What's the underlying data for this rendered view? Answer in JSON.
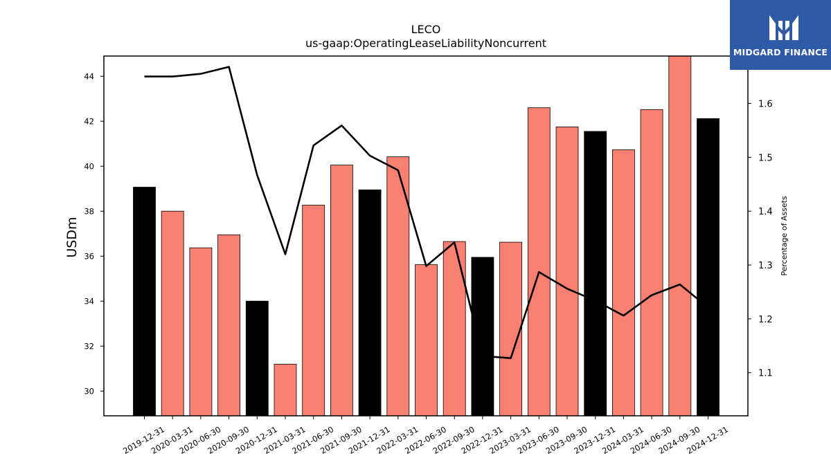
{
  "chart_data": {
    "type": "bar",
    "title": "LECO",
    "subtitle": "us-gaap:OperatingLeaseLiabilityNoncurrent",
    "ylabel": "USDm",
    "y2label": "Percentage of Assets",
    "categories": [
      "2019-12-31",
      "2020-03-31",
      "2020-06-30",
      "2020-09-30",
      "2020-12-31",
      "2021-03-31",
      "2021-06-30",
      "2021-09-30",
      "2021-12-31",
      "2022-03-31",
      "2022-06-30",
      "2022-09-30",
      "2022-12-31",
      "2023-03-31",
      "2023-06-30",
      "2023-09-30",
      "2023-12-31",
      "2024-03-31",
      "2024-06-30",
      "2024-09-30",
      "2024-12-31"
    ],
    "series": [
      {
        "kind": "bar",
        "axis": "left",
        "values": [
          39.07,
          38.0,
          36.37,
          36.95,
          34.0,
          31.2,
          38.27,
          40.05,
          38.95,
          40.42,
          35.62,
          36.65,
          35.95,
          36.62,
          42.6,
          41.75,
          41.55,
          40.73,
          42.52,
          44.95,
          42.12
        ],
        "colors": [
          "#000000",
          "#fa8072",
          "#fa8072",
          "#fa8072",
          "#000000",
          "#fa8072",
          "#fa8072",
          "#fa8072",
          "#000000",
          "#fa8072",
          "#fa8072",
          "#fa8072",
          "#000000",
          "#fa8072",
          "#fa8072",
          "#fa8072",
          "#000000",
          "#fa8072",
          "#fa8072",
          "#fa8072",
          "#000000"
        ]
      },
      {
        "kind": "line",
        "axis": "right",
        "color": "#000000",
        "values": [
          1.65,
          1.65,
          1.655,
          1.668,
          1.467,
          1.32,
          1.522,
          1.559,
          1.503,
          1.476,
          1.298,
          1.342,
          1.131,
          1.127,
          1.287,
          1.256,
          1.234,
          1.206,
          1.244,
          1.264,
          1.221
        ]
      }
    ],
    "ylim": [
      28.9,
      44.9
    ],
    "y2lim": [
      1.02,
      1.688
    ],
    "yticks": [
      "30",
      "32",
      "34",
      "36",
      "38",
      "40",
      "42",
      "44"
    ],
    "y2ticks": [
      "1.1",
      "1.2",
      "1.3",
      "1.4",
      "1.5",
      "1.6"
    ],
    "grid": false,
    "legend": "none"
  },
  "logo": {
    "text": "MIDGARD FINANCE",
    "icon": "midgard-logo-icon",
    "background": "#2f5aa8"
  }
}
